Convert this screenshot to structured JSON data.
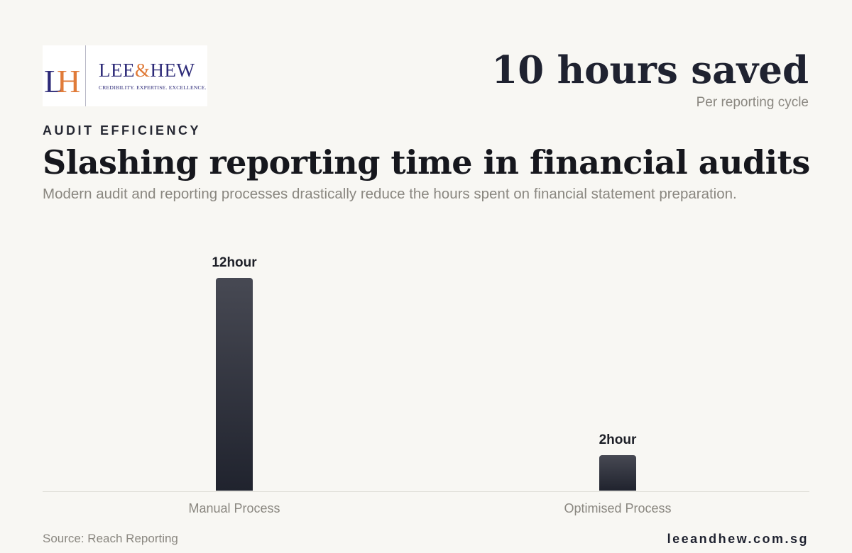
{
  "logo": {
    "name_left": "LEE",
    "name_amp": "&",
    "name_right": "HEW",
    "tagline": "CREDIBILITY. EXPERTISE. EXCELLENCE."
  },
  "headline": {
    "value": "10 hours saved",
    "sub": "Per reporting cycle"
  },
  "eyebrow": "AUDIT EFFICIENCY",
  "title": "Slashing reporting time in financial audits",
  "subtitle": "Modern audit and reporting processes drastically reduce the hours spent on financial statement preparation.",
  "footer": {
    "source": "Source: Reach Reporting",
    "site": "leeandhew.com.sg"
  },
  "colors": {
    "bar_top": "#474953",
    "bar_bottom": "#20232e",
    "brand_navy": "#2d2a78",
    "brand_orange": "#e07b39"
  },
  "chart_data": {
    "type": "bar",
    "categories": [
      "Manual Process",
      "Optimised Process"
    ],
    "values": [
      12,
      2
    ],
    "unit": "hour",
    "data_labels": [
      "12hour",
      "2hour"
    ],
    "ylim": [
      0,
      12
    ],
    "grid": false
  }
}
